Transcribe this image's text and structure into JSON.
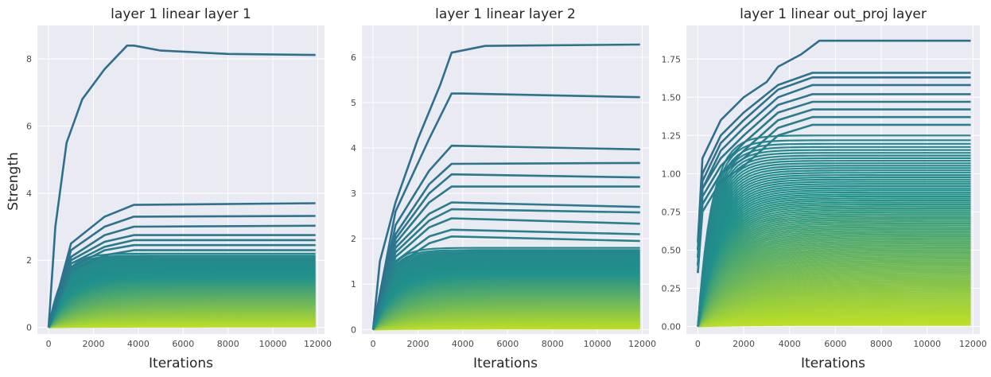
{
  "colors": {
    "background": "#eaeaf2",
    "grid": "#ffffff",
    "curve_strong": "#2f6f8e",
    "curve_mid": "#21918c",
    "curve_weak": "#bddf26"
  },
  "figure": {
    "ylabel": "Strength"
  },
  "chart_data": [
    {
      "type": "line",
      "title": "layer 1 linear layer 1",
      "xlabel": "Iterations",
      "ylabel": "Strength",
      "xlim": [
        -500,
        12300
      ],
      "ylim": [
        -0.2,
        9.0
      ],
      "xticks": [
        0,
        2000,
        4000,
        6000,
        8000,
        10000,
        12000
      ],
      "xtick_labels": [
        "0",
        "2000",
        "4000",
        "6000",
        "8000",
        "10000",
        "12000"
      ],
      "yticks": [
        0,
        2,
        4,
        6,
        8
      ],
      "ytick_labels": [
        "0",
        "2",
        "4",
        "6",
        "8"
      ],
      "grid": true,
      "bulk_curves": {
        "count": 90,
        "max_final": 2.2,
        "min_final": 0.02
      },
      "series": [
        {
          "x": [
            0,
            300,
            800,
            1500,
            2500,
            3500,
            3800,
            5000,
            8000,
            11900
          ],
          "y": [
            0,
            3.0,
            5.5,
            6.8,
            7.7,
            8.4,
            8.4,
            8.25,
            8.15,
            8.12
          ]
        },
        {
          "x": [
            0,
            1000,
            2500,
            3800,
            11900
          ],
          "y": [
            0,
            2.5,
            3.3,
            3.65,
            3.7
          ]
        },
        {
          "x": [
            0,
            1000,
            2500,
            3800,
            11900
          ],
          "y": [
            0,
            2.3,
            3.0,
            3.3,
            3.32
          ]
        },
        {
          "x": [
            0,
            1000,
            2500,
            3800,
            11900
          ],
          "y": [
            0,
            2.1,
            2.75,
            3.0,
            3.03
          ]
        },
        {
          "x": [
            0,
            1000,
            2500,
            3800,
            11900
          ],
          "y": [
            0,
            2.0,
            2.55,
            2.75,
            2.75
          ]
        },
        {
          "x": [
            0,
            1000,
            2500,
            3800,
            11900
          ],
          "y": [
            0,
            1.9,
            2.4,
            2.6,
            2.6
          ]
        },
        {
          "x": [
            0,
            1000,
            2500,
            3800,
            11900
          ],
          "y": [
            0,
            1.8,
            2.3,
            2.45,
            2.45
          ]
        },
        {
          "x": [
            0,
            1000,
            2500,
            3800,
            11900
          ],
          "y": [
            0,
            1.7,
            2.15,
            2.3,
            2.3
          ]
        }
      ]
    },
    {
      "type": "line",
      "title": "layer 1 linear layer 2",
      "xlabel": "Iterations",
      "ylabel": "",
      "xlim": [
        -500,
        12300
      ],
      "ylim": [
        -0.1,
        6.7
      ],
      "xticks": [
        0,
        2000,
        4000,
        6000,
        8000,
        10000,
        12000
      ],
      "xtick_labels": [
        "0",
        "2000",
        "4000",
        "6000",
        "8000",
        "10000",
        "12000"
      ],
      "yticks": [
        0,
        1,
        2,
        3,
        4,
        5,
        6
      ],
      "ytick_labels": [
        "0",
        "1",
        "2",
        "3",
        "4",
        "5",
        "6"
      ],
      "grid": true,
      "bulk_curves": {
        "count": 90,
        "max_final": 1.8,
        "min_final": 0.02
      },
      "series": [
        {
          "x": [
            0,
            300,
            1000,
            2000,
            3000,
            3500,
            5000,
            11900
          ],
          "y": [
            0,
            1.5,
            2.8,
            4.2,
            5.4,
            6.1,
            6.25,
            6.28
          ]
        },
        {
          "x": [
            0,
            1000,
            2500,
            3500,
            4000,
            11900
          ],
          "y": [
            0,
            2.6,
            4.2,
            5.2,
            5.2,
            5.12
          ]
        },
        {
          "x": [
            0,
            1000,
            2500,
            3500,
            11900
          ],
          "y": [
            0,
            2.3,
            3.5,
            4.05,
            3.97
          ]
        },
        {
          "x": [
            0,
            1000,
            2500,
            3500,
            11900
          ],
          "y": [
            0,
            2.1,
            3.2,
            3.65,
            3.67
          ]
        },
        {
          "x": [
            0,
            1000,
            2500,
            3500,
            11900
          ],
          "y": [
            0,
            2.0,
            3.0,
            3.42,
            3.35
          ]
        },
        {
          "x": [
            0,
            1000,
            2500,
            3500,
            11900
          ],
          "y": [
            0,
            1.9,
            2.8,
            3.15,
            3.15
          ]
        },
        {
          "x": [
            0,
            1000,
            2500,
            3500,
            11900
          ],
          "y": [
            0,
            1.8,
            2.55,
            2.8,
            2.7
          ]
        },
        {
          "x": [
            0,
            1000,
            2500,
            3500,
            11900
          ],
          "y": [
            0,
            1.7,
            2.4,
            2.65,
            2.58
          ]
        },
        {
          "x": [
            0,
            1000,
            2500,
            3500,
            11900
          ],
          "y": [
            0,
            1.6,
            2.25,
            2.45,
            2.33
          ]
        },
        {
          "x": [
            0,
            1000,
            2500,
            3500,
            11900
          ],
          "y": [
            0,
            1.5,
            2.05,
            2.2,
            2.1
          ]
        },
        {
          "x": [
            0,
            1000,
            2500,
            3500,
            11900
          ],
          "y": [
            0,
            1.4,
            1.9,
            2.05,
            1.95
          ]
        }
      ]
    },
    {
      "type": "line",
      "title": "layer 1 linear out_proj layer",
      "xlabel": "Iterations",
      "ylabel": "",
      "xlim": [
        -500,
        12300
      ],
      "ylim": [
        -0.05,
        1.97
      ],
      "xticks": [
        0,
        2000,
        4000,
        6000,
        8000,
        10000,
        12000
      ],
      "xtick_labels": [
        "0",
        "2000",
        "4000",
        "6000",
        "8000",
        "10000",
        "12000"
      ],
      "yticks": [
        0,
        0.25,
        0.5,
        0.75,
        1.0,
        1.25,
        1.5,
        1.75
      ],
      "ytick_labels": [
        "0.00",
        "0.25",
        "0.50",
        "0.75",
        "1.00",
        "1.25",
        "1.50",
        "1.75"
      ],
      "grid": true,
      "bulk_curves": {
        "count": 100,
        "max_final": 1.25,
        "min_final": 0.01
      },
      "series": [
        {
          "x": [
            0,
            200,
            1000,
            2000,
            3000,
            3500,
            4500,
            5300,
            6000,
            11900
          ],
          "y": [
            0.55,
            1.1,
            1.35,
            1.5,
            1.6,
            1.7,
            1.78,
            1.87,
            1.87,
            1.87
          ]
        },
        {
          "x": [
            0,
            200,
            1000,
            2000,
            3500,
            5000,
            11900
          ],
          "y": [
            0.5,
            1.0,
            1.25,
            1.4,
            1.58,
            1.66,
            1.66
          ]
        },
        {
          "x": [
            0,
            200,
            1000,
            2000,
            3500,
            5000,
            11900
          ],
          "y": [
            0.5,
            0.95,
            1.2,
            1.35,
            1.55,
            1.63,
            1.63
          ]
        },
        {
          "x": [
            0,
            200,
            1000,
            2000,
            3500,
            5000,
            11900
          ],
          "y": [
            0.45,
            0.9,
            1.15,
            1.3,
            1.5,
            1.58,
            1.58
          ]
        },
        {
          "x": [
            0,
            200,
            1000,
            2000,
            3500,
            5000,
            11900
          ],
          "y": [
            0.45,
            0.9,
            1.1,
            1.25,
            1.45,
            1.52,
            1.52
          ]
        },
        {
          "x": [
            0,
            200,
            1000,
            2000,
            3500,
            5000,
            11900
          ],
          "y": [
            0.4,
            0.85,
            1.05,
            1.2,
            1.4,
            1.47,
            1.47
          ]
        },
        {
          "x": [
            0,
            200,
            1000,
            2000,
            3500,
            5000,
            11900
          ],
          "y": [
            0.4,
            0.8,
            1.0,
            1.15,
            1.35,
            1.42,
            1.42
          ]
        },
        {
          "x": [
            0,
            200,
            1000,
            2000,
            3500,
            5000,
            11900
          ],
          "y": [
            0.35,
            0.8,
            1.0,
            1.1,
            1.3,
            1.37,
            1.37
          ]
        },
        {
          "x": [
            0,
            200,
            1000,
            2000,
            3500,
            5000,
            11900
          ],
          "y": [
            0.35,
            0.75,
            0.95,
            1.05,
            1.25,
            1.32,
            1.32
          ]
        }
      ]
    }
  ]
}
